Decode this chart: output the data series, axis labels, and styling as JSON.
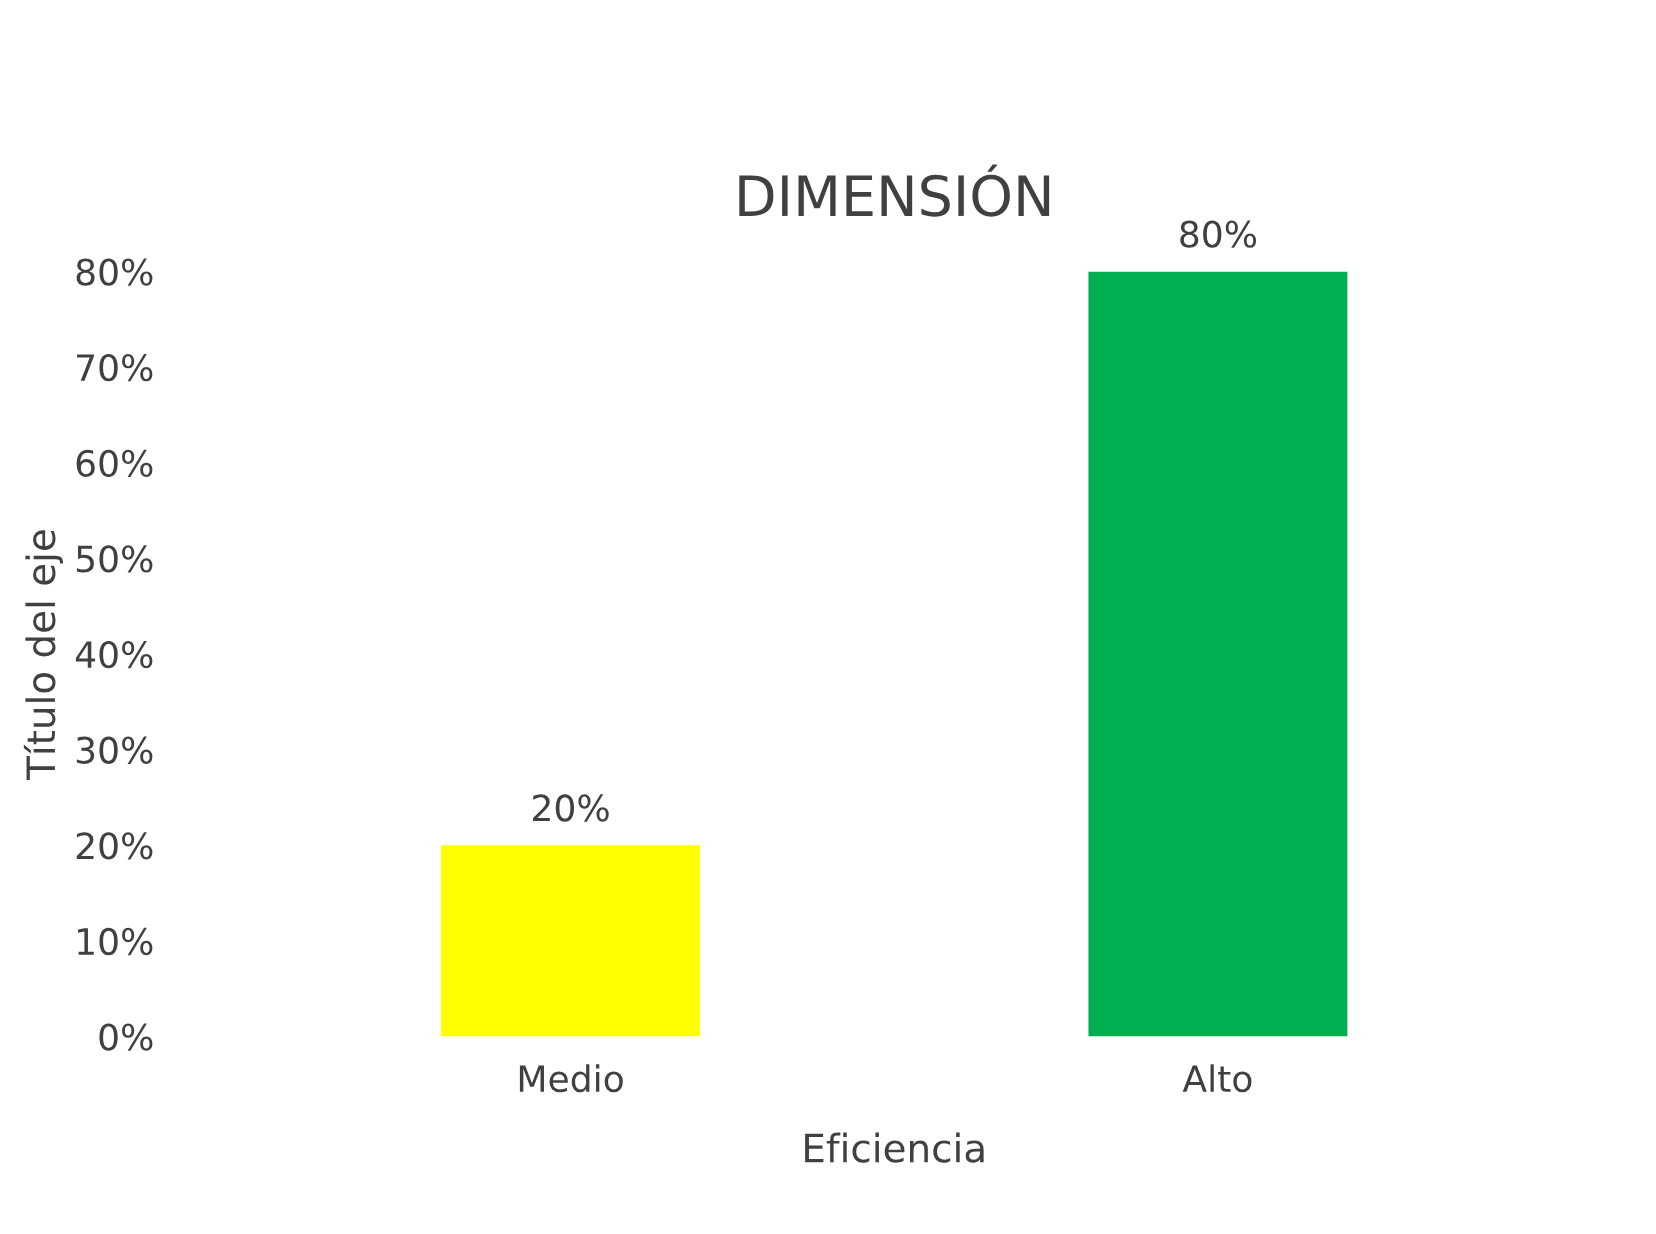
{
  "chart_data": {
    "type": "bar",
    "title": "DIMENSIÓN",
    "xlabel": "Eficiencia",
    "ylabel": "Título del eje",
    "categories": [
      "Medio",
      "Alto"
    ],
    "values": [
      20,
      80
    ],
    "colors": [
      "#ffff00",
      "#00b050"
    ],
    "value_labels": [
      "20%",
      "80%"
    ],
    "ylim": [
      0,
      80
    ],
    "yticks": [
      {
        "value": 0,
        "label": "0%"
      },
      {
        "value": 10,
        "label": "10%"
      },
      {
        "value": 20,
        "label": "20%"
      },
      {
        "value": 30,
        "label": "30%"
      },
      {
        "value": 40,
        "label": "40%"
      },
      {
        "value": 50,
        "label": "50%"
      },
      {
        "value": 60,
        "label": "60%"
      },
      {
        "value": 70,
        "label": "70%"
      },
      {
        "value": 80,
        "label": "80%"
      }
    ],
    "grid": false
  }
}
